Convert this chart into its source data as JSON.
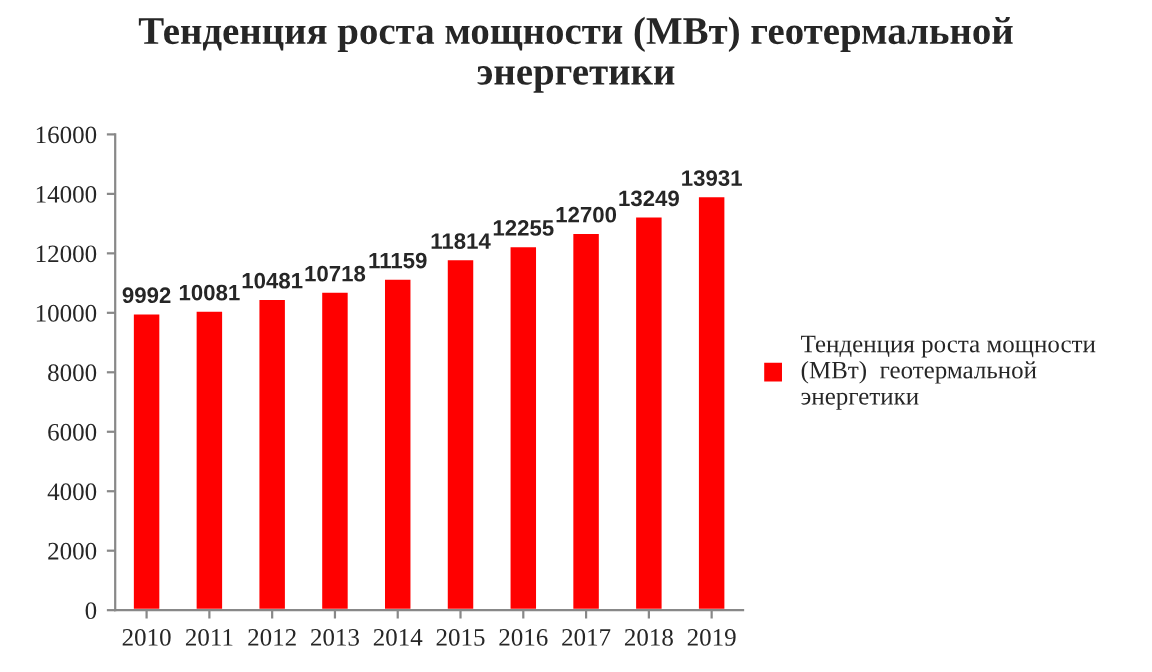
{
  "chart_data": {
    "type": "bar",
    "title": "Тенденция роста мощности (МВт) геотермальной\nэнергетики",
    "categories": [
      "2010",
      "2011",
      "2012",
      "2013",
      "2014",
      "2015",
      "2016",
      "2017",
      "2018",
      "2019"
    ],
    "series": [
      {
        "name": "Тенденция роста мощности\n(МВт)  геотермальной\nэнергетики",
        "color": "#ff0000",
        "values": [
          9992,
          10081,
          10481,
          10718,
          11159,
          11814,
          12255,
          12700,
          13249,
          13931
        ]
      }
    ],
    "ylim": [
      0,
      16000
    ],
    "yticks": [
      0,
      2000,
      4000,
      6000,
      8000,
      10000,
      12000,
      14000,
      16000
    ],
    "data_labels": true,
    "legend": "right",
    "grid": false
  }
}
